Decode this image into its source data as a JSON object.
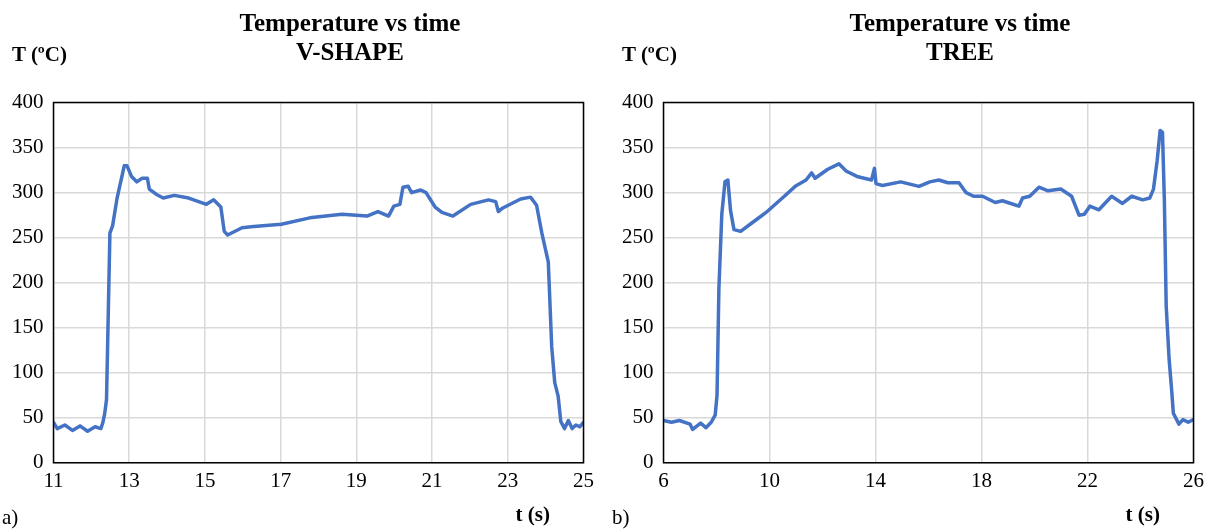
{
  "chart_data": [
    {
      "type": "line",
      "title": "Temperature vs time",
      "subtitle": "V-SHAPE",
      "xlabel": "t (s)",
      "ylabel": "T (ºC)",
      "annotations": [
        "a)"
      ],
      "xlim": [
        11,
        25
      ],
      "xticks": [
        11,
        13,
        15,
        17,
        19,
        21,
        23,
        25
      ],
      "ylim": [
        0,
        400
      ],
      "yticks": [
        0,
        50,
        100,
        150,
        200,
        250,
        300,
        350,
        400
      ],
      "grid": true,
      "series": [
        {
          "color": "#4472c4",
          "x": [
            11.0,
            11.1,
            11.3,
            11.5,
            11.7,
            11.9,
            12.1,
            12.25,
            12.3,
            12.35,
            12.4,
            12.49,
            12.56,
            12.68,
            12.87,
            12.94,
            13.06,
            13.2,
            13.34,
            13.48,
            13.53,
            13.72,
            13.9,
            14.19,
            14.57,
            15.04,
            15.23,
            15.42,
            15.51,
            15.6,
            15.98,
            16.45,
            17.02,
            17.77,
            18.62,
            19.28,
            19.57,
            19.85,
            19.99,
            20.15,
            20.23,
            20.37,
            20.46,
            20.7,
            20.84,
            21.08,
            21.26,
            21.55,
            22.02,
            22.49,
            22.68,
            22.75,
            22.87,
            23.34,
            23.6,
            23.76,
            23.9,
            24.07,
            24.16,
            24.24,
            24.33,
            24.4,
            24.5,
            24.6,
            24.7,
            24.8,
            24.9,
            25.0
          ],
          "values": [
            45,
            38,
            42,
            36,
            41,
            35,
            40,
            38,
            44,
            54,
            70,
            255,
            263,
            294,
            330,
            330,
            318,
            312,
            316,
            316,
            304,
            298,
            294,
            297,
            294,
            287,
            292,
            284,
            257,
            253,
            261,
            263,
            265,
            272,
            276,
            274,
            279,
            274,
            285,
            287,
            306,
            307,
            300,
            303,
            300,
            284,
            278,
            274,
            287,
            292,
            290,
            279,
            283,
            293,
            295,
            286,
            255,
            223,
            129,
            89,
            74,
            46,
            38,
            47,
            38,
            42,
            40,
            45
          ]
        }
      ]
    },
    {
      "type": "line",
      "title": "Temperature vs time",
      "subtitle": "TREE",
      "xlabel": "t (s)",
      "ylabel": "T (ºC)",
      "annotations": [
        "b)"
      ],
      "xlim": [
        6,
        26
      ],
      "xticks": [
        6,
        10,
        14,
        18,
        22,
        26
      ],
      "ylim": [
        0,
        400
      ],
      "yticks": [
        0,
        50,
        100,
        150,
        200,
        250,
        300,
        350,
        400
      ],
      "grid": true,
      "series": [
        {
          "color": "#4472c4",
          "x": [
            6.0,
            6.3,
            6.6,
            7.0,
            7.1,
            7.4,
            7.6,
            7.8,
            7.95,
            8.02,
            8.09,
            8.2,
            8.32,
            8.43,
            8.53,
            8.66,
            8.91,
            9.32,
            9.87,
            10.56,
            10.97,
            11.38,
            11.59,
            11.72,
            12.2,
            12.62,
            12.89,
            13.3,
            13.85,
            13.96,
            14.02,
            14.26,
            14.95,
            15.64,
            16.05,
            16.39,
            16.73,
            17.15,
            17.42,
            17.7,
            18.04,
            18.52,
            18.79,
            19.41,
            19.55,
            19.82,
            20.17,
            20.51,
            20.99,
            21.4,
            21.68,
            21.88,
            22.09,
            22.43,
            22.91,
            23.32,
            23.67,
            24.08,
            24.35,
            24.49,
            24.63,
            24.74,
            24.83,
            24.9,
            24.97,
            25.08,
            25.18,
            25.24,
            25.45,
            25.6,
            25.8,
            26.0
          ],
          "values": [
            47,
            45,
            47,
            43,
            37,
            44,
            39,
            45,
            53,
            75,
            193,
            276,
            312,
            314,
            280,
            259,
            257,
            266,
            278,
            296,
            307,
            314,
            322,
            316,
            326,
            332,
            324,
            318,
            314,
            327,
            310,
            308,
            312,
            307,
            312,
            314,
            311,
            311,
            300,
            296,
            296,
            289,
            291,
            285,
            294,
            296,
            306,
            302,
            304,
            296,
            275,
            276,
            285,
            281,
            296,
            288,
            296,
            292,
            294,
            304,
            336,
            369,
            367,
            292,
            174,
            115,
            79,
            55,
            43,
            48,
            45,
            48
          ]
        }
      ]
    }
  ]
}
